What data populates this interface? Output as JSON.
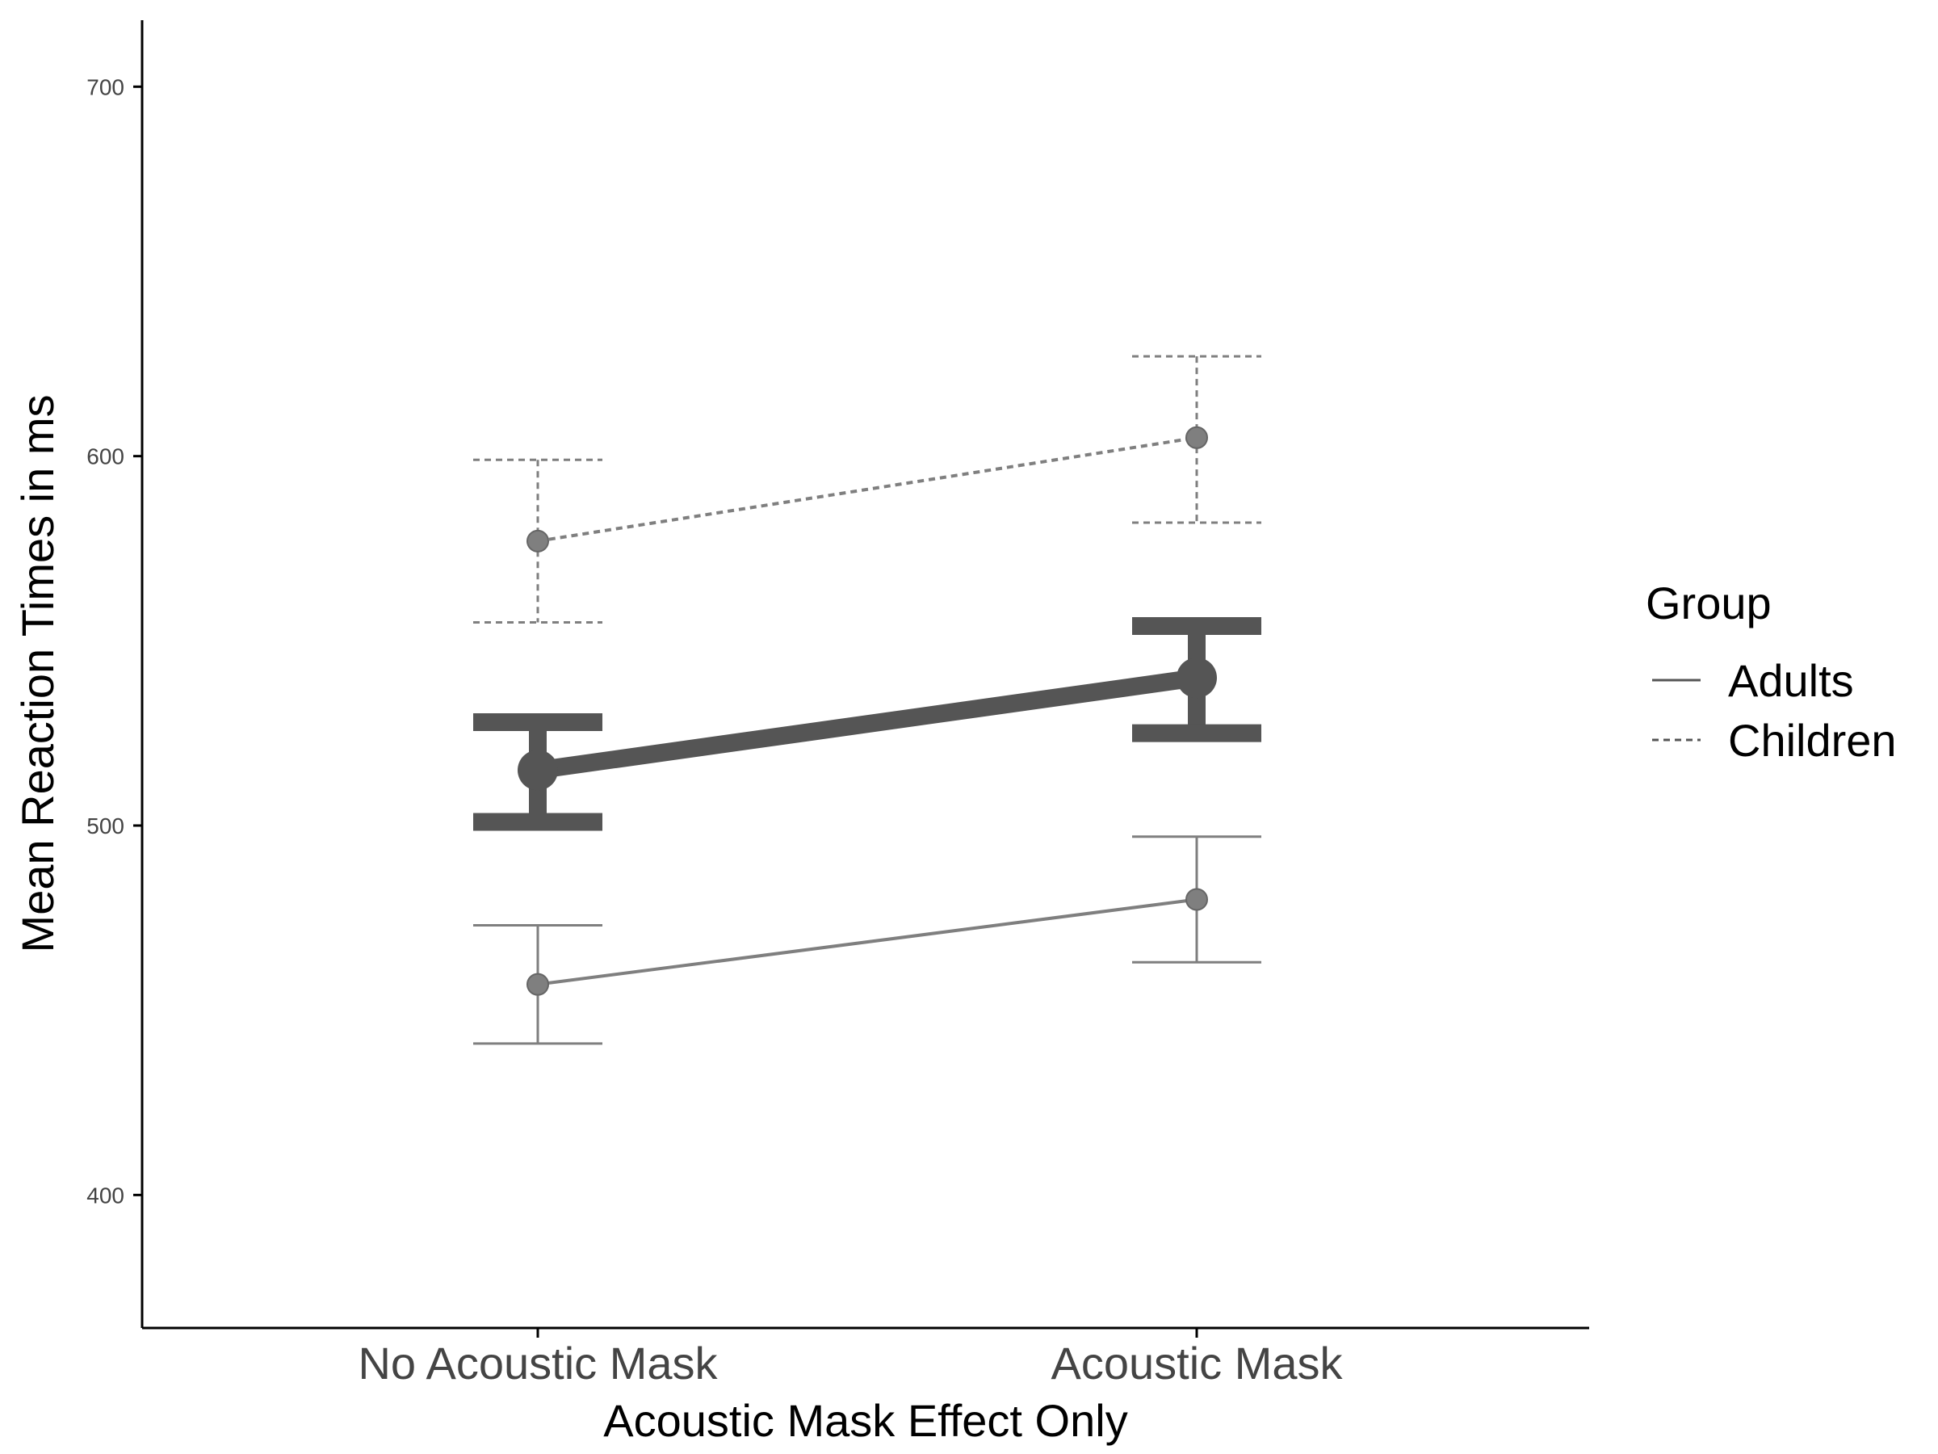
{
  "chart_data": {
    "type": "line",
    "xlabel": "Acoustic Mask Effect Only",
    "ylabel": "Mean Reaction Times in ms",
    "categories": [
      "No Acoustic Mask",
      "Acoustic Mask"
    ],
    "ylim": [
      364,
      718
    ],
    "yticks": [
      400,
      500,
      600,
      700
    ],
    "grid": false,
    "legend": {
      "title": "Group",
      "position": "right",
      "entries": [
        {
          "label": "Adults",
          "linetype": "solid"
        },
        {
          "label": "Children",
          "linetype": "dashed"
        }
      ]
    },
    "series": [
      {
        "key": "children",
        "linetype": "dashed",
        "values": [
          577,
          605
        ],
        "error_low": [
          555,
          582
        ],
        "error_high": [
          599,
          627
        ],
        "color": "#555555",
        "opacity": 0.75,
        "emphasis": false
      },
      {
        "key": "overall",
        "linetype": "solid",
        "values": [
          515,
          540
        ],
        "error_low": [
          501,
          525
        ],
        "error_high": [
          528,
          554
        ],
        "color": "#555555",
        "opacity": 1.0,
        "emphasis": true
      },
      {
        "key": "adults",
        "linetype": "solid",
        "values": [
          457,
          480
        ],
        "error_low": [
          441,
          463
        ],
        "error_high": [
          473,
          497
        ],
        "color": "#555555",
        "opacity": 0.75,
        "emphasis": false
      }
    ]
  }
}
